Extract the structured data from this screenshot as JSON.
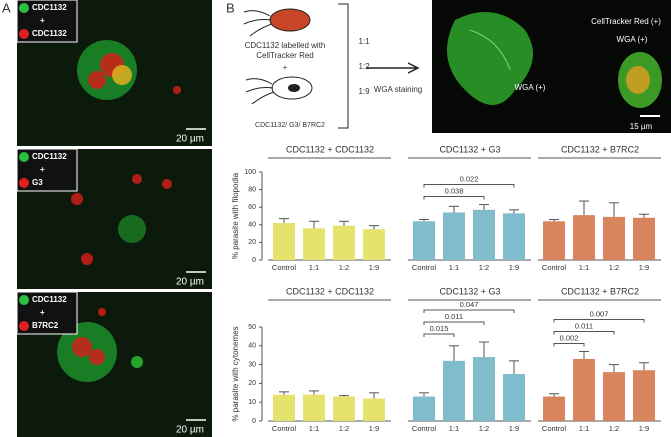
{
  "panel_labels": [
    "A",
    "B"
  ],
  "panel_a": {
    "images": [
      {
        "legend": [
          "CDC1132",
          "+",
          "CDC1132"
        ],
        "scale_bar": "20 µm"
      },
      {
        "legend": [
          "CDC1132",
          "+",
          "G3"
        ],
        "scale_bar": "20 µm"
      },
      {
        "legend": [
          "CDC1132",
          "+",
          "B7RC2"
        ],
        "scale_bar": "20 µm"
      }
    ]
  },
  "panel_b": {
    "diagram": {
      "labelled": [
        "CDC1132 labelled with",
        "CellTracker Red"
      ],
      "plus": "+",
      "partner": "CDC1132/ G3/ B7RC2",
      "ratios": [
        "1:1",
        "1:2",
        "1:9"
      ],
      "staining": "WGA staining"
    },
    "image": {
      "labels": [
        "CellTracker Red (+)",
        "WGA (+)",
        "WGA (+)"
      ],
      "scale_bar": "15 µm"
    }
  },
  "chart_data": [
    {
      "type": "bar",
      "y_label": "% parasite with filopodia",
      "ylim": [
        0,
        100
      ],
      "yticks": [
        0,
        20,
        40,
        60,
        80,
        100
      ],
      "groups": [
        {
          "title": "CDC1132 + CDC1132",
          "color": "#e6e36c",
          "categories": [
            "Control",
            "1:1",
            "1:2",
            "1:9"
          ],
          "values": [
            42,
            36,
            39,
            35
          ],
          "errors": [
            5,
            8,
            5,
            4
          ]
        },
        {
          "title": "CDC1132 + G3",
          "color": "#80bccb",
          "categories": [
            "Control",
            "1:1",
            "1:2",
            "1:9"
          ],
          "values": [
            44,
            54,
            57,
            53
          ],
          "errors": [
            2,
            7,
            6,
            4
          ],
          "brackets": [
            {
              "label": "0.038",
              "between": [
                "Control",
                "1:2"
              ]
            },
            {
              "label": "0.022",
              "between": [
                "Control",
                "1:9"
              ]
            }
          ]
        },
        {
          "title": "CDC1132 + B7RC2",
          "color": "#d8845c",
          "categories": [
            "Control",
            "1:1",
            "1:2",
            "1:9"
          ],
          "values": [
            44,
            51,
            49,
            48
          ],
          "errors": [
            2,
            16,
            16,
            4
          ]
        }
      ]
    },
    {
      "type": "bar",
      "y_label": "% parasite with cytonemes",
      "ylim": [
        0,
        50
      ],
      "yticks": [
        0,
        10,
        20,
        30,
        40,
        50
      ],
      "groups": [
        {
          "title": "CDC1132 + CDC1132",
          "color": "#e6e36c",
          "categories": [
            "Control",
            "1:1",
            "1:2",
            "1:9"
          ],
          "values": [
            14,
            14,
            13,
            12
          ],
          "errors": [
            1.5,
            2,
            0.5,
            3
          ]
        },
        {
          "title": "CDC1132 + G3",
          "color": "#80bccb",
          "categories": [
            "Control",
            "1:1",
            "1:2",
            "1:9"
          ],
          "values": [
            13,
            32,
            34,
            25
          ],
          "errors": [
            2,
            8,
            8,
            7
          ],
          "brackets": [
            {
              "label": "0.015",
              "between": [
                "Control",
                "1:1"
              ]
            },
            {
              "label": "0.011",
              "between": [
                "Control",
                "1:2"
              ]
            },
            {
              "label": "0.047",
              "between": [
                "Control",
                "1:9"
              ]
            }
          ]
        },
        {
          "title": "CDC1132 + B7RC2",
          "color": "#d8845c",
          "categories": [
            "Control",
            "1:1",
            "1:2",
            "1:9"
          ],
          "values": [
            13,
            33,
            26,
            27
          ],
          "errors": [
            1.5,
            4,
            4,
            4
          ],
          "brackets": [
            {
              "label": "0.002",
              "between": [
                "Control",
                "1:1"
              ]
            },
            {
              "label": "0.011",
              "between": [
                "Control",
                "1:2"
              ]
            },
            {
              "label": "0.007",
              "between": [
                "Control",
                "1:9"
              ]
            }
          ]
        }
      ]
    }
  ]
}
